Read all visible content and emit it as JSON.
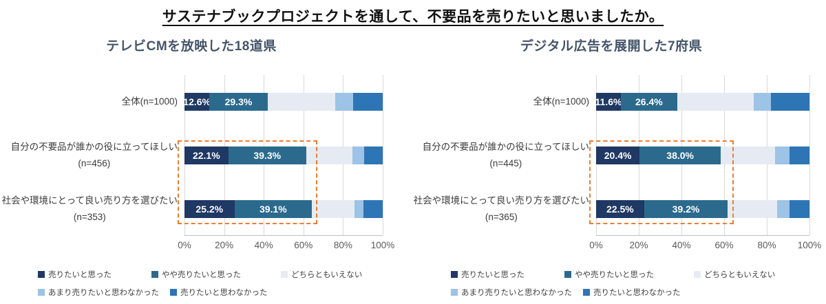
{
  "title": "サステナブックプロジェクトを通して、不要品を売りたいと思いましたか。",
  "colors": {
    "series": [
      "#1f3864",
      "#2b6a8d",
      "#e6ebf3",
      "#9dc3e6",
      "#2e75b6"
    ],
    "highlight": "#ed7d31",
    "axis_text": "#595959",
    "category_text": "#3a3a3a",
    "chart_title_text": "#44546a",
    "grid_line": "#d9d9d9"
  },
  "x_ticks": [
    "0%",
    "20%",
    "40%",
    "60%",
    "80%",
    "100%"
  ],
  "legend_labels": [
    "売りたいと思った",
    "やや売りたいと思った",
    "どちらともいえない",
    "あまり売りたいと思わなかった",
    "売りたいと思わなかった"
  ],
  "legend_rows": [
    [
      0,
      1,
      2
    ],
    [
      3,
      4
    ]
  ],
  "chart_data": [
    {
      "type": "bar",
      "orientation": "horizontal",
      "stacked": true,
      "title": "テレビCMを放映した18道県",
      "xlim": [
        0,
        100
      ],
      "grid": true,
      "legend_position": "bottom",
      "categories": [
        [
          "全体(n=1000)"
        ],
        [
          "自分の不要品が誰かの役に立ってほしい",
          "(n=456)"
        ],
        [
          "社会や環境にとって良い売り方を選びたい",
          "(n=353)"
        ]
      ],
      "series": [
        {
          "name": "売りたいと思った",
          "values": [
            12.6,
            22.1,
            25.2
          ],
          "labeled": true
        },
        {
          "name": "やや売りたいと思った",
          "values": [
            29.3,
            39.3,
            39.1
          ],
          "labeled": true
        },
        {
          "name": "どちらともいえない",
          "values": [
            34.1,
            23.3,
            21.5
          ],
          "labeled": false
        },
        {
          "name": "あまり売りたいと思わなかった",
          "values": [
            9.0,
            6.1,
            4.5
          ],
          "labeled": false
        },
        {
          "name": "売りたいと思わなかった",
          "values": [
            15.0,
            9.2,
            9.7
          ],
          "labeled": false
        }
      ],
      "highlight_rows": [
        1,
        2
      ]
    },
    {
      "type": "bar",
      "orientation": "horizontal",
      "stacked": true,
      "title": "デジタル広告を展開した7府県",
      "xlim": [
        0,
        100
      ],
      "grid": true,
      "legend_position": "bottom",
      "categories": [
        [
          "全体(n=1000)"
        ],
        [
          "自分の不要品が誰かの役に立ってほしい",
          "(n=445)"
        ],
        [
          "社会や環境にとって良い売り方を選びたい",
          "(n=365)"
        ]
      ],
      "series": [
        {
          "name": "売りたいと思った",
          "values": [
            11.6,
            20.4,
            22.5
          ],
          "labeled": true
        },
        {
          "name": "やや売りたいと思った",
          "values": [
            26.4,
            38.0,
            39.2
          ],
          "labeled": true
        },
        {
          "name": "どちらともいえない",
          "values": [
            36.0,
            25.6,
            23.3
          ],
          "labeled": false
        },
        {
          "name": "あまり売りたいと思わなかった",
          "values": [
            8.0,
            6.5,
            5.5
          ],
          "labeled": false
        },
        {
          "name": "売りたいと思わなかった",
          "values": [
            18.0,
            9.5,
            9.5
          ],
          "labeled": false
        }
      ],
      "highlight_rows": [
        1,
        2
      ]
    }
  ]
}
